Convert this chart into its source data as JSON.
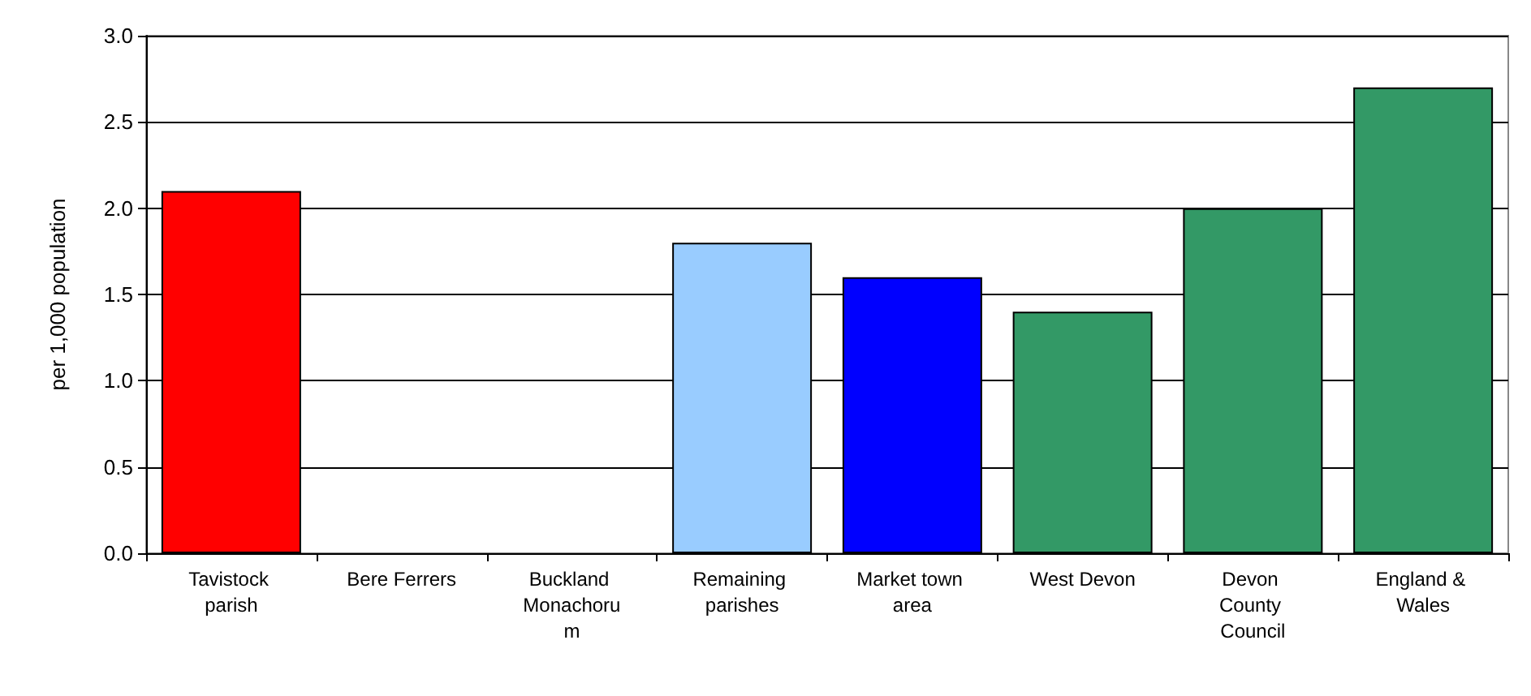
{
  "chart_data": {
    "type": "bar",
    "ylabel": "per 1,000 population",
    "categories": [
      "Tavistock parish",
      "Bere Ferrers",
      "Buckland Monachorum",
      "Remaining parishes",
      "Market town area",
      "West Devon",
      "Devon County Council",
      "England & Wales"
    ],
    "values": [
      2.1,
      null,
      null,
      1.8,
      1.6,
      1.4,
      2.0,
      2.7
    ],
    "colors": [
      "#ff0000",
      "#339966",
      "#339966",
      "#99ccff",
      "#0000ff",
      "#339966",
      "#339966",
      "#339966"
    ],
    "ylim": [
      0,
      3
    ],
    "yticks": [
      {
        "value": 0,
        "label": "0.0"
      },
      {
        "value": 0.5,
        "label": "0.5"
      },
      {
        "value": 1,
        "label": "1.0"
      },
      {
        "value": 1.5,
        "label": "1.5"
      },
      {
        "value": 2,
        "label": "2.0"
      },
      {
        "value": 2.5,
        "label": "2.5"
      },
      {
        "value": 3,
        "label": "3.0"
      }
    ],
    "grid": "y"
  }
}
